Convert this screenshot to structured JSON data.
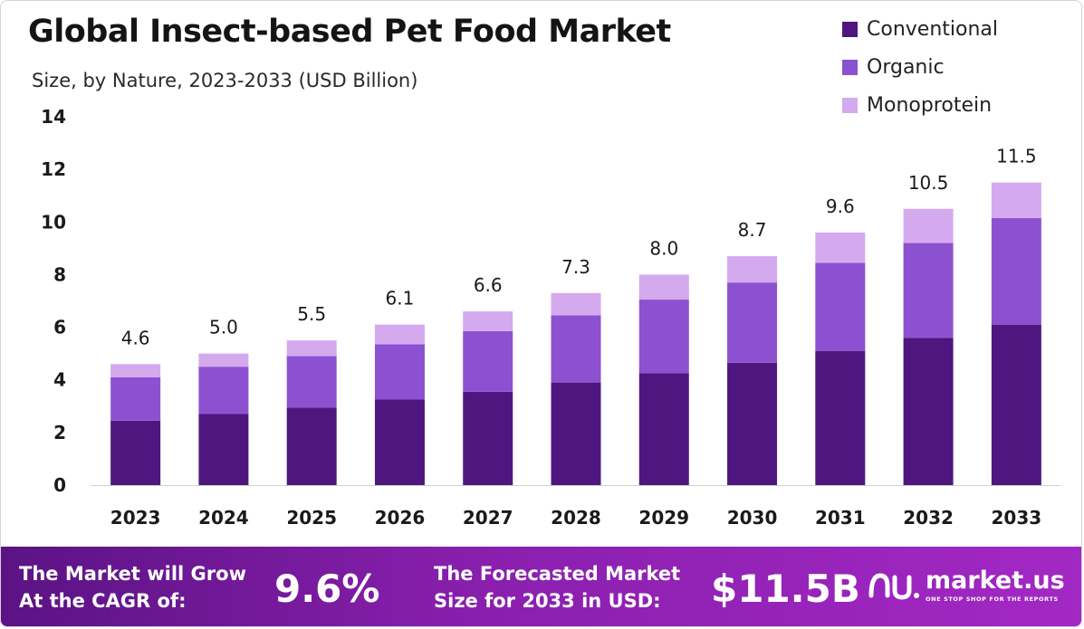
{
  "header": {
    "title": "Global Insect-based Pet Food Market",
    "subtitle": "Size, by Nature, 2023-2033 (USD Billion)"
  },
  "colors": {
    "conventional": "#4e1780",
    "organic": "#8c51d0",
    "monoprotein": "#d4a9ee",
    "footer_start": "#5b1384",
    "footer_end": "#a328c4"
  },
  "chart_data": {
    "type": "bar",
    "stacked": true,
    "title": "Global Insect-based Pet Food Market",
    "subtitle": "Size, by Nature, 2023-2033 (USD Billion)",
    "xlabel": "",
    "ylabel": "",
    "ylim": [
      0,
      14
    ],
    "yticks": [
      0,
      2,
      4,
      6,
      8,
      10,
      12,
      14
    ],
    "categories": [
      "2023",
      "2024",
      "2025",
      "2026",
      "2027",
      "2028",
      "2029",
      "2030",
      "2031",
      "2032",
      "2033"
    ],
    "series": [
      {
        "name": "Conventional",
        "values": [
          2.45,
          2.7,
          2.95,
          3.25,
          3.55,
          3.9,
          4.25,
          4.65,
          5.1,
          5.6,
          6.1
        ]
      },
      {
        "name": "Organic",
        "values": [
          1.65,
          1.8,
          1.95,
          2.1,
          2.3,
          2.55,
          2.8,
          3.05,
          3.35,
          3.6,
          4.05
        ]
      },
      {
        "name": "Monoprotein",
        "values": [
          0.5,
          0.5,
          0.6,
          0.75,
          0.75,
          0.85,
          0.95,
          1.0,
          1.15,
          1.3,
          1.35
        ]
      }
    ],
    "totals": [
      4.6,
      5.0,
      5.5,
      6.1,
      6.6,
      7.3,
      8.0,
      8.7,
      9.6,
      10.5,
      11.5
    ],
    "total_labels": [
      "4.6",
      "5.0",
      "5.5",
      "6.1",
      "6.6",
      "7.3",
      "8.0",
      "8.7",
      "9.6",
      "10.5",
      "11.5"
    ],
    "legend_position": "top-right",
    "grid": false
  },
  "footer": {
    "cagr_text_line1": "The Market will Grow",
    "cagr_text_line2": "At the CAGR of:",
    "cagr_value": "9.6%",
    "forecast_text_line1": "The Forecasted Market",
    "forecast_text_line2": "Size for 2033 in USD:",
    "forecast_value": "$11.5B",
    "brand_name": "market.us",
    "brand_tagline": "ONE STOP SHOP FOR THE REPORTS"
  }
}
